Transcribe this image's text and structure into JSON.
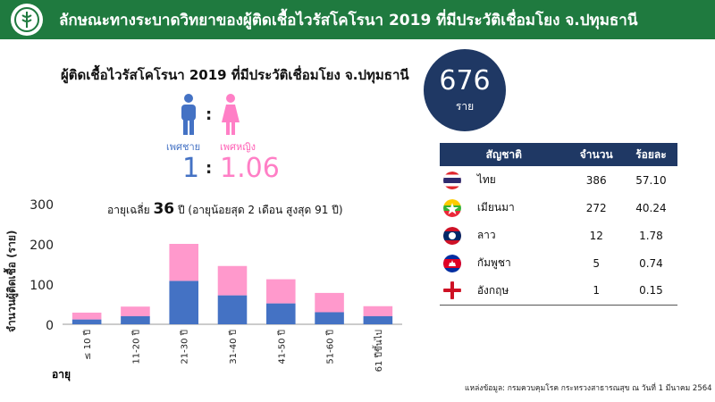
{
  "header": {
    "title": "ลักษณะทางระบาดวิทยาของผู้ติดเชื้อไวรัสโคโรนา 2019 ที่มีประวัติเชื่อมโยง จ.ปทุมธานี",
    "bg_color": "#1f7a3f"
  },
  "summary": {
    "title": "ผู้ติดเชื้อไวรัสโคโรนา 2019 ที่มีประวัติเชื่อมโยง จ.ปทุมธานี",
    "total": "676",
    "total_unit": "ราย"
  },
  "gender": {
    "male_label": "เพศชาย",
    "female_label": "เพศหญิง",
    "colon": ":",
    "male_ratio": "1",
    "female_ratio": "1.06",
    "male_color": "#4472c4",
    "female_color": "#ff7fc6"
  },
  "age": {
    "prefix": "อายุเฉลี่ย",
    "mean": "36",
    "suffix": "ปี (อายุน้อยสุด 2 เดือน สูงสุด 91 ปี)"
  },
  "chart_data": {
    "type": "bar",
    "stacked": true,
    "categories": [
      "≤ 10 ปี",
      "11-20 ปี",
      "21-30 ปี",
      "31-40 ปี",
      "41-50 ปี",
      "51-60 ปี",
      "61 ปีขึ้นไป"
    ],
    "series": [
      {
        "values": [
          12,
          20,
          108,
          72,
          52,
          30,
          20
        ],
        "color": "#4472c4"
      },
      {
        "values": [
          17,
          24,
          92,
          73,
          60,
          48,
          25
        ],
        "color": "#ff99cc"
      }
    ],
    "ylabel": "จำนวนผู้ติดเชื้อ (ราย)",
    "xlabel": "อายุ",
    "ylim": [
      0,
      300
    ],
    "yticks": [
      0,
      100,
      200,
      300
    ],
    "grid": false
  },
  "nationality_table": {
    "headers": [
      "สัญชาติ",
      "จำนวน",
      "ร้อยละ"
    ],
    "rows": [
      {
        "flag": "thailand-flag-icon",
        "name": "ไทย",
        "count": "386",
        "percent": "57.10"
      },
      {
        "flag": "myanmar-flag-icon",
        "name": "เมียนมา",
        "count": "272",
        "percent": "40.24"
      },
      {
        "flag": "laos-flag-icon",
        "name": "ลาว",
        "count": "12",
        "percent": "1.78"
      },
      {
        "flag": "cambodia-flag-icon",
        "name": "กัมพูชา",
        "count": "5",
        "percent": "0.74"
      },
      {
        "flag": "england-flag-icon",
        "name": "อังกฤษ",
        "count": "1",
        "percent": "0.15"
      }
    ]
  },
  "source": "แหล่งข้อมูล: กรมควบคุมโรค กระทรวงสาธารณสุข ณ วันที่ 1 มีนาคม 2564"
}
